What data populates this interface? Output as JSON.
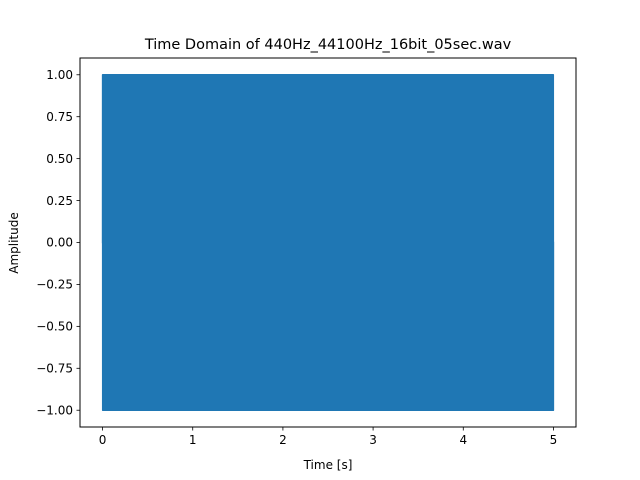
{
  "chart_data": {
    "type": "line",
    "title": "Time Domain of 440Hz_44100Hz_16bit_05sec.wav",
    "xlabel": "Time [s]",
    "ylabel": "Amplitude",
    "xlim": [
      -0.25,
      5.25
    ],
    "ylim": [
      -1.1,
      1.1
    ],
    "x_ticks": [
      0,
      1,
      2,
      3,
      4,
      5
    ],
    "x_tick_labels": [
      "0",
      "1",
      "2",
      "3",
      "4",
      "5"
    ],
    "y_ticks": [
      -1.0,
      -0.75,
      -0.5,
      -0.25,
      0.0,
      0.25,
      0.5,
      0.75,
      1.0
    ],
    "y_tick_labels": [
      "−1.00",
      "−0.75",
      "−0.50",
      "−0.25",
      "0.00",
      "0.25",
      "0.50",
      "0.75",
      "1.00"
    ],
    "grid": false,
    "series": [
      {
        "frequency_hz": 440,
        "sample_rate_hz": 44100,
        "amplitude": 1.0,
        "x_start": 0,
        "x_end": 5,
        "color": "#1f77b4"
      }
    ]
  }
}
